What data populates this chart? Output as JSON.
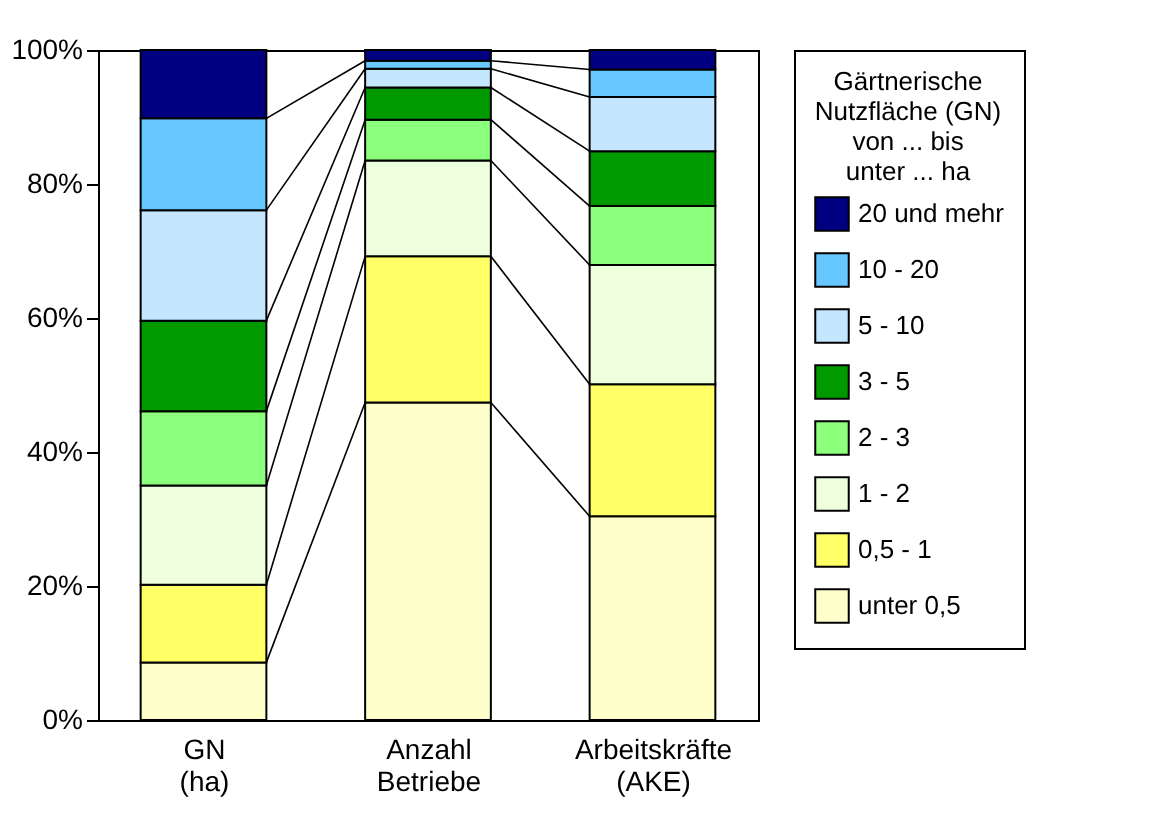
{
  "chart_data": {
    "type": "bar",
    "stacked": true,
    "categories": [
      "GN\n(ha)",
      "Anzahl\nBetriebe",
      "Arbeitskräfte\n(AKE)"
    ],
    "legend_title": "Gärtnerische\nNutzfläche (GN)\nvon ... bis\nunter ... ha",
    "legend": "right",
    "ylim": [
      0,
      100
    ],
    "yticks": [
      {
        "value": 0,
        "label": "0%"
      },
      {
        "value": 20,
        "label": "20%"
      },
      {
        "value": 40,
        "label": "40%"
      },
      {
        "value": 60,
        "label": "60%"
      },
      {
        "value": 80,
        "label": "80%"
      },
      {
        "value": 100,
        "label": "100%"
      }
    ],
    "grid": false,
    "series": [
      {
        "name": "unter 0,5",
        "color": "#ffffcc",
        "values": [
          8.6,
          47.4,
          30.4
        ]
      },
      {
        "name": "0,5 - 1",
        "color": "#ffff66",
        "values": [
          11.6,
          21.8,
          19.7
        ]
      },
      {
        "name": "1 - 2",
        "color": "#eeffdd",
        "values": [
          14.8,
          14.3,
          17.8
        ]
      },
      {
        "name": "2 - 3",
        "color": "#8cff7c",
        "values": [
          11.1,
          6.1,
          8.8
        ]
      },
      {
        "name": "3 - 5",
        "color": "#009900",
        "values": [
          13.5,
          4.8,
          8.2
        ]
      },
      {
        "name": "5 - 10",
        "color": "#c4e6ff",
        "values": [
          16.5,
          2.8,
          8.1
        ]
      },
      {
        "name": "10 - 20",
        "color": "#66c8ff",
        "values": [
          13.7,
          1.2,
          4.1
        ]
      },
      {
        "name": "20 und mehr",
        "color": "#000080",
        "values": [
          10.2,
          1.6,
          2.9
        ]
      }
    ]
  }
}
